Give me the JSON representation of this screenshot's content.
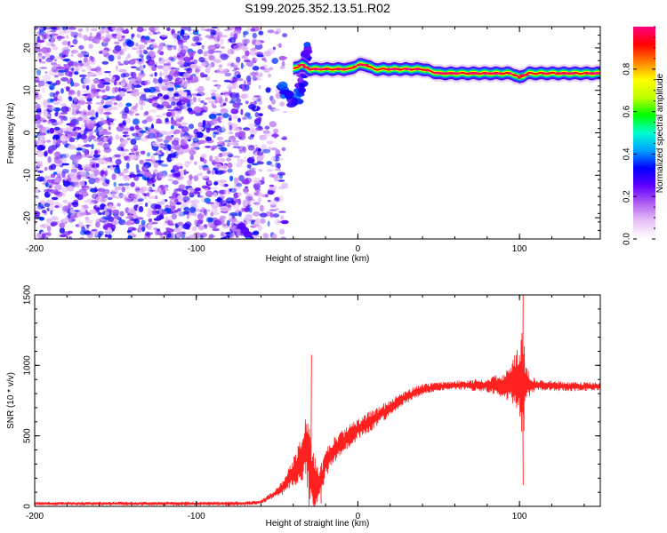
{
  "title": "S199.2025.352.13.51.R02",
  "chart_data": [
    {
      "type": "heatmap",
      "xlabel": "Height of straight line (km)",
      "ylabel": "Frequency (Hz)",
      "xlim": [
        -200,
        150
      ],
      "ylim": [
        -25,
        25
      ],
      "xticks": [
        -200,
        -100,
        0,
        100
      ],
      "yticks": [
        -20,
        -10,
        0,
        10,
        20
      ],
      "xtick_labels": [
        "-200",
        "-100",
        "0",
        "100"
      ],
      "ytick_labels": [
        "-20",
        "-10",
        "0",
        "10",
        "20"
      ],
      "colorbar": {
        "label": "Normalized spectral amplitude",
        "range": [
          0,
          1
        ],
        "ticks": [
          0.0,
          0.2,
          0.4,
          0.6,
          0.8
        ],
        "tick_labels": [
          "0.0",
          "0.2",
          "0.4",
          "0.6",
          "0.8"
        ],
        "colormap": [
          "#ffffff",
          "#e8c4f8",
          "#b060f0",
          "#6000ff",
          "#0000ff",
          "#00a0ff",
          "#00ffd0",
          "#00ff00",
          "#c0ff00",
          "#ffff00",
          "#ff8000",
          "#ff0000",
          "#ff0080"
        ]
      },
      "ridge": {
        "x": [
          -40,
          -35,
          -30,
          -25,
          -20,
          -15,
          -10,
          -5,
          0,
          5,
          10,
          20,
          30,
          40,
          50,
          60,
          70,
          80,
          90,
          95,
          100,
          105,
          110,
          120,
          130,
          140,
          150
        ],
        "frequency": [
          15,
          16,
          15,
          15,
          15,
          15,
          15,
          15,
          16,
          16,
          15,
          15,
          15,
          15,
          14,
          14,
          14,
          14,
          14,
          14,
          13,
          14,
          14,
          14,
          14,
          14,
          14
        ]
      },
      "noise_region_x": [
        -200,
        -60
      ]
    },
    {
      "type": "line",
      "xlabel": "Height of straight line (km)",
      "ylabel": "SNR (10 * v/v)",
      "xlim": [
        -200,
        150
      ],
      "ylim": [
        0,
        1500
      ],
      "xticks": [
        -200,
        -100,
        0,
        100
      ],
      "yticks": [
        0,
        500,
        1000,
        1500
      ],
      "xtick_labels": [
        "-200",
        "-100",
        "0",
        "100"
      ],
      "ytick_labels": [
        "0",
        "500",
        "1000",
        "1500"
      ],
      "color": "#ff2020",
      "envelope": {
        "x": [
          -200,
          -150,
          -100,
          -70,
          -60,
          -50,
          -45,
          -40,
          -35,
          -32,
          -30,
          -28,
          -26,
          -23,
          -20,
          -15,
          -10,
          -5,
          0,
          10,
          20,
          30,
          40,
          50,
          60,
          80,
          90,
          95,
          98,
          100,
          102,
          104,
          110,
          130,
          150
        ],
        "y": [
          20,
          20,
          20,
          20,
          30,
          100,
          150,
          250,
          330,
          450,
          300,
          200,
          150,
          180,
          300,
          400,
          450,
          500,
          550,
          620,
          700,
          780,
          830,
          850,
          860,
          860,
          860,
          870,
          880,
          850,
          850,
          870,
          860,
          850,
          850
        ]
      },
      "noise_amplitude": {
        "x": [
          -200,
          -60,
          -50,
          -40,
          -35,
          -32,
          -30,
          -28,
          -25,
          -20,
          -10,
          0,
          20,
          40,
          60,
          80,
          90,
          95,
          100,
          102,
          104,
          110,
          150
        ],
        "y": [
          12,
          15,
          30,
          100,
          180,
          280,
          350,
          250,
          120,
          100,
          90,
          80,
          60,
          40,
          30,
          50,
          90,
          150,
          280,
          450,
          120,
          40,
          30
        ]
      },
      "spikes": [
        {
          "x": 102,
          "y": 1540
        },
        {
          "x": -29,
          "y": 1075
        },
        {
          "x": 102,
          "y": 150
        },
        {
          "x": -23,
          "y": 20
        }
      ]
    }
  ]
}
